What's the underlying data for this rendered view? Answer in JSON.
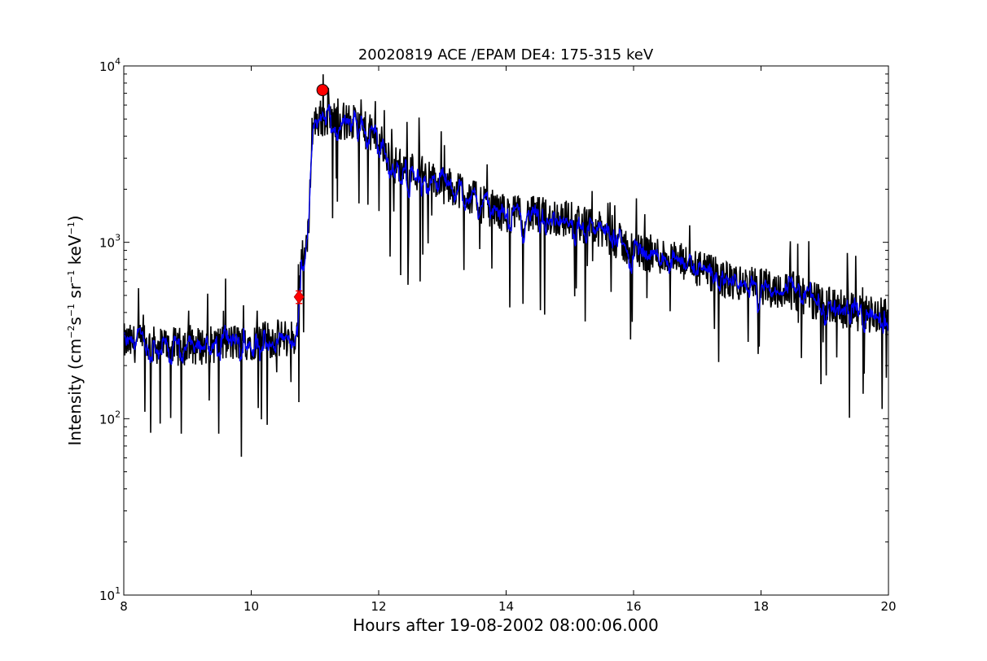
{
  "chart_data": {
    "type": "line",
    "title": "20020819 ACE /EPAM DE4: 175-315 keV",
    "xlabel": "Hours after 19-08-2002 08:00:06.000",
    "ylabel": {
      "prefix": "Intensity (cm",
      "sup1": "−2",
      "mid1": "s",
      "sup2": "−1",
      "mid2": " sr",
      "sup3": "−1",
      "mid3": " keV",
      "sup4": "−1",
      "suffix": ")"
    },
    "xlim": [
      8,
      20
    ],
    "ylim": [
      10,
      10000
    ],
    "yscale": "log",
    "grid": false,
    "x_ticks": [
      8,
      10,
      12,
      14,
      16,
      18,
      20
    ],
    "x_tick_labels": [
      "8",
      "10",
      "12",
      "14",
      "16",
      "18",
      "20"
    ],
    "y_ticks": [
      10,
      100,
      1000,
      10000
    ],
    "y_tick_labels": [
      {
        "base": "10",
        "exp": "1"
      },
      {
        "base": "10",
        "exp": "2"
      },
      {
        "base": "10",
        "exp": "3"
      },
      {
        "base": "10",
        "exp": "4"
      }
    ],
    "colors": {
      "raw": "#000000",
      "smoothed": "#0000ff",
      "marker": "#ff0000"
    },
    "envelope": {
      "x": [
        8.0,
        8.5,
        9.0,
        9.5,
        10.0,
        10.5,
        10.72,
        10.78,
        10.85,
        10.9,
        10.95,
        11.0,
        11.1,
        11.3,
        11.6,
        12.0,
        12.2,
        12.6,
        13.0,
        13.3,
        13.6,
        14.0,
        14.5,
        15.0,
        15.5,
        16.0,
        16.5,
        17.0,
        17.5,
        18.0,
        18.5,
        19.0,
        19.5,
        20.0
      ],
      "y": [
        270,
        260,
        255,
        265,
        275,
        285,
        290,
        850,
        900,
        1100,
        4300,
        4800,
        5100,
        5000,
        4700,
        3900,
        2800,
        2500,
        2100,
        2000,
        1650,
        1450,
        1420,
        1350,
        1150,
        900,
        830,
        710,
        600,
        560,
        530,
        440,
        400,
        390
      ]
    },
    "markers": [
      {
        "type": "diamond",
        "x": 10.75,
        "y": 490,
        "err": [
          450,
          530
        ]
      },
      {
        "type": "circle",
        "x": 11.12,
        "y": 7300
      }
    ]
  }
}
